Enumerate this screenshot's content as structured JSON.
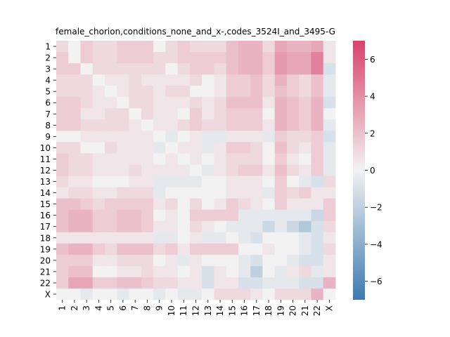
{
  "chart_data": {
    "type": "heatmap",
    "title": "female_chorion,conditions_none_and_x-,codes_3524I_and_3495-G",
    "xlabel": "",
    "ylabel": "",
    "categories": [
      "1",
      "2",
      "3",
      "4",
      "5",
      "6",
      "7",
      "8",
      "9",
      "10",
      "11",
      "12",
      "13",
      "14",
      "15",
      "16",
      "17",
      "18",
      "19",
      "20",
      "21",
      "22",
      "X"
    ],
    "y_categories": [
      "1",
      "2",
      "3",
      "4",
      "5",
      "6",
      "7",
      "8",
      "9",
      "10",
      "11",
      "12",
      "13",
      "14",
      "15",
      "16",
      "17",
      "18",
      "19",
      "20",
      "21",
      "22",
      "X"
    ],
    "colorbar": {
      "vmin": -7,
      "vmax": 7,
      "ticks": [
        -6,
        -4,
        -2,
        0,
        2,
        4,
        6
      ],
      "low_color": "#3d7ab0",
      "mid_color": "#f2f2f2",
      "high_color": "#d9426d"
    },
    "grid": false,
    "legend": "colorbar-right",
    "values": [
      [
        1,
        0,
        1.5,
        1,
        1,
        1.5,
        1.5,
        1.5,
        0,
        1,
        1.5,
        1,
        1,
        1,
        2,
        2.5,
        2.5,
        1,
        3,
        2.5,
        2.5,
        3,
        0.5
      ],
      [
        1.5,
        0,
        1.5,
        1,
        1,
        1.5,
        1.5,
        1.5,
        1,
        1,
        1.5,
        1.5,
        1.5,
        1.5,
        2,
        2.5,
        2.5,
        1.5,
        3.5,
        3,
        3,
        4.5,
        0.5
      ],
      [
        1.5,
        1.5,
        0,
        1,
        1,
        1,
        1,
        1,
        1,
        0,
        1,
        1.5,
        1.5,
        1,
        2,
        2.5,
        2.5,
        1.5,
        3.5,
        3,
        3,
        4.5,
        -1
      ],
      [
        1,
        1,
        1,
        0,
        0.5,
        0.5,
        1,
        0.5,
        0.5,
        0.5,
        0.5,
        1,
        0,
        0.5,
        1.5,
        1.5,
        2,
        1,
        2.5,
        1.5,
        1,
        2,
        -0.5
      ],
      [
        1,
        1,
        1,
        0.5,
        0,
        0.5,
        1,
        1,
        0.5,
        1,
        1,
        0,
        0,
        0.5,
        1.5,
        1.5,
        2,
        1,
        2,
        1.5,
        1,
        2,
        -0.5
      ],
      [
        1.5,
        1.5,
        1,
        0.5,
        0.5,
        0,
        1,
        1,
        0.5,
        0.5,
        0.5,
        1,
        0.5,
        1,
        2,
        2,
        2,
        0.5,
        2.5,
        2,
        1.5,
        2.5,
        -1
      ],
      [
        1.5,
        1.5,
        0.5,
        0.5,
        1,
        1,
        0,
        1,
        0.5,
        0.5,
        0,
        1.5,
        0.5,
        1,
        1.5,
        1.5,
        1.5,
        0,
        2.5,
        2,
        1.5,
        2.5,
        0
      ],
      [
        1.5,
        1.5,
        1,
        1,
        1,
        1,
        0.5,
        0,
        0.5,
        0.5,
        1,
        1.5,
        1,
        1,
        1.5,
        1.5,
        1.5,
        0.5,
        2.5,
        2,
        1.5,
        2.5,
        -0.5
      ],
      [
        0,
        0,
        0.5,
        0.5,
        0.5,
        0.5,
        0.5,
        0.5,
        0,
        -0.5,
        0,
        0.5,
        -0.5,
        -0.5,
        0.5,
        0.5,
        0.5,
        -0.5,
        1.5,
        1,
        1,
        1.5,
        -1
      ],
      [
        1,
        1,
        0,
        0,
        1,
        0.5,
        0.5,
        0.5,
        -0.5,
        0,
        0.5,
        0.5,
        -0.5,
        0.5,
        1.5,
        1.5,
        1,
        0,
        2,
        1,
        0.5,
        1.5,
        -0.5
      ],
      [
        1.5,
        1,
        1,
        0.5,
        0.5,
        0.5,
        0.5,
        0.5,
        0,
        0.5,
        0,
        0.5,
        0,
        0.5,
        1,
        1,
        1,
        0,
        1.5,
        0.5,
        0,
        1.5,
        -0.5
      ],
      [
        1.5,
        1,
        1,
        0.5,
        0.5,
        0.5,
        1,
        0.5,
        0.5,
        0.5,
        0.5,
        0,
        -0.5,
        0.5,
        1,
        1.5,
        1.5,
        0.5,
        2,
        1,
        0.5,
        1.5,
        -0.5
      ],
      [
        1,
        0.5,
        0.5,
        0,
        0,
        0,
        0.5,
        0.5,
        -0.5,
        -0.5,
        -0.5,
        -0.5,
        0,
        0,
        0.5,
        0.5,
        0.5,
        0,
        1.5,
        0,
        -0.5,
        -1,
        1
      ],
      [
        0.5,
        1,
        1,
        0.5,
        0.5,
        1,
        1,
        1,
        -0.5,
        0,
        0,
        0,
        0,
        0,
        0.5,
        0.5,
        0.5,
        -0.5,
        1.5,
        1,
        1.5,
        0.5,
        0.5
      ],
      [
        2,
        2,
        1.5,
        1,
        1.5,
        1.5,
        1.5,
        1.5,
        0.5,
        1,
        0,
        1,
        0,
        0.5,
        1.5,
        1,
        0.5,
        0,
        1.5,
        0.5,
        0.5,
        0.5,
        1.5
      ],
      [
        2,
        2.5,
        2.5,
        1.5,
        1.5,
        2,
        2,
        1.5,
        0,
        0.5,
        0,
        1.5,
        1.5,
        1.5,
        1.5,
        -0.5,
        -0.5,
        -0.5,
        -0.5,
        -0.5,
        -0.5,
        -1.5,
        1.5
      ],
      [
        2,
        2.5,
        2.5,
        1.5,
        1.5,
        2,
        2,
        1.5,
        0.5,
        0.5,
        0,
        1,
        0.5,
        0,
        -0.5,
        -0.5,
        -0.5,
        -1.5,
        -0.5,
        -1.5,
        -2.5,
        -1,
        1
      ],
      [
        0.5,
        0.5,
        0.5,
        0.5,
        0.5,
        0.5,
        0.5,
        0.5,
        -0.5,
        -0.5,
        0,
        0.5,
        -0.5,
        -0.5,
        0,
        -0.5,
        -1,
        0,
        0,
        0,
        -0.5,
        -1,
        0.5
      ],
      [
        2,
        2.5,
        2.5,
        1.5,
        1,
        2,
        2,
        2,
        1,
        1.5,
        0.5,
        1.5,
        1.5,
        1.5,
        1.5,
        0,
        0,
        0.5,
        0,
        0,
        -0.5,
        -1,
        1
      ],
      [
        1.5,
        1.5,
        1.5,
        0.5,
        0.5,
        1,
        1,
        1,
        0,
        0.5,
        -0.5,
        0.5,
        0,
        0,
        0,
        -0.5,
        -1,
        0,
        0,
        -0.5,
        -1,
        -1,
        0.5
      ],
      [
        1.5,
        2,
        2,
        0,
        0,
        0.5,
        0.5,
        1,
        0.5,
        0.5,
        0,
        0.5,
        -1,
        0.5,
        0,
        -0.5,
        -2,
        0,
        -0.5,
        0.5,
        1,
        -0.5,
        0.5
      ],
      [
        1.5,
        3,
        3,
        1.5,
        1.5,
        2,
        2,
        1.5,
        1,
        1,
        0.5,
        0.5,
        -1,
        0.5,
        0.5,
        -1,
        -1,
        -0.5,
        -0.5,
        -0.5,
        -1,
        -1,
        2.5
      ],
      [
        0,
        0,
        -0.5,
        0,
        0,
        -0.5,
        0,
        0,
        -0.5,
        0,
        -0.5,
        -0.5,
        0,
        1,
        1,
        1,
        0.5,
        0,
        1,
        1,
        1,
        2.5,
        0
      ]
    ]
  }
}
